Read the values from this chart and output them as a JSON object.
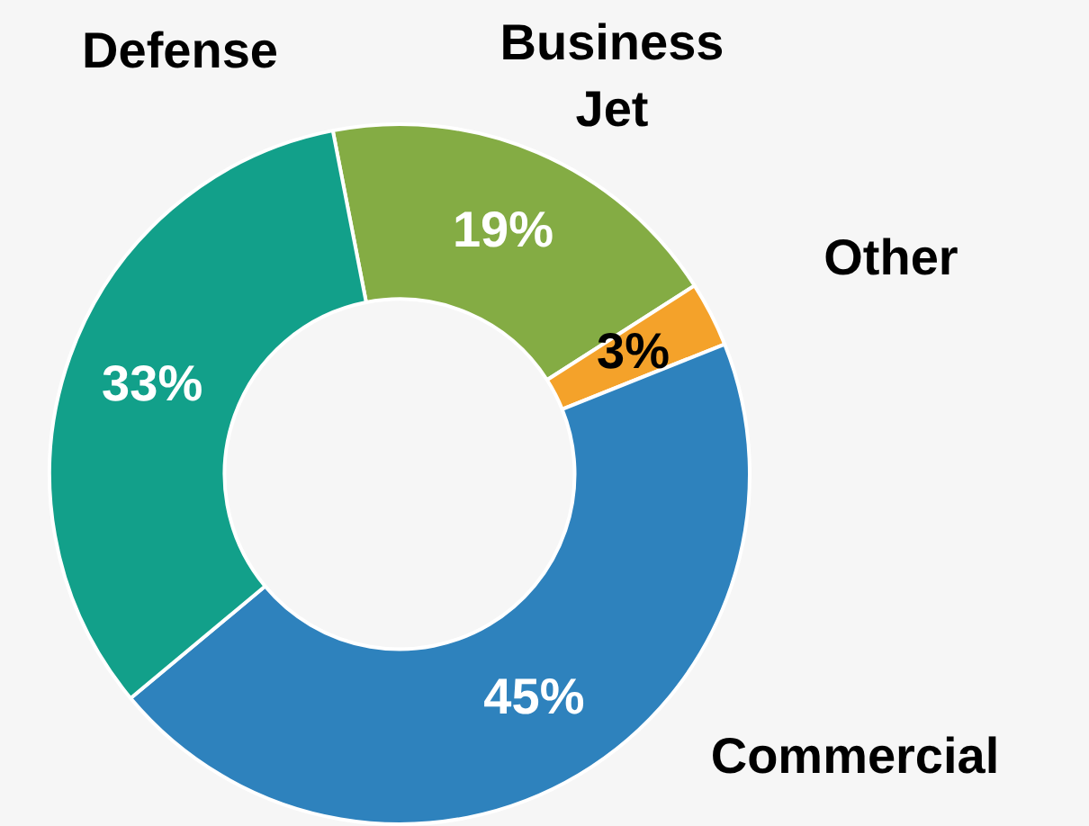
{
  "chart_data": {
    "type": "donut",
    "categories": [
      "Business Jet",
      "Other",
      "Commercial",
      "Defense"
    ],
    "values": [
      19,
      3,
      45,
      33
    ],
    "colors": [
      "#84ac44",
      "#f4a22a",
      "#2e82bd",
      "#12a08a"
    ],
    "value_labels": [
      "19%",
      "3%",
      "45%",
      "33%"
    ],
    "legend": false
  }
}
